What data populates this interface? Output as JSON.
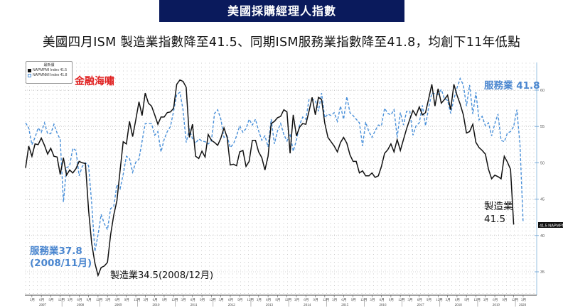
{
  "banner": {
    "title": "美國採購經理人指數",
    "bg_color": "#0a1a5c"
  },
  "subtitle": "美國四月ISM 製造業指數降至41.5、同期ISM服務業指數降至41.8，均創下11年低點",
  "brand_label": "金融海嘯",
  "legend": {
    "title": "最新價",
    "items": [
      {
        "swatch": "black-square",
        "label": "NAPMPMI Index 41.5"
      },
      {
        "swatch": "blue-outline-square",
        "label": "NAPMNMI Index 41.8"
      }
    ]
  },
  "annotations": {
    "services_latest": "服務業 41.8",
    "services_low_line1": "服務業37.8",
    "services_low_line2": "(2008/11月)",
    "mfg_low": "製造業34.5(2008/12月)",
    "mfg_latest_line1": "製造業",
    "mfg_latest_line2": "41.5",
    "last_value_tag": "41.5 NAPMPMI"
  },
  "chart_data": {
    "type": "line",
    "title": "美國採購經理人指數",
    "xlabel": "",
    "ylabel": "",
    "ylim": [
      33,
      62
    ],
    "yticks": [
      35,
      40,
      45,
      50,
      55,
      60
    ],
    "y_axis_position": "right",
    "grid": true,
    "legend_position": "top-left",
    "x_start": "2007-01",
    "x_end": "2020-04",
    "x_month_ticks": [
      "3月",
      "6月",
      "9月",
      "12月"
    ],
    "x_year_labels": [
      "2007",
      "2008",
      "2009",
      "2010",
      "2011",
      "2012",
      "2013",
      "2014",
      "2015",
      "2016",
      "2017",
      "2018",
      "2019",
      "2020"
    ],
    "series": [
      {
        "name": "NAPMPMI Index (製造業)",
        "color": "#111111",
        "style": "solid",
        "latest": 41.5,
        "values": [
          49.3,
          52.3,
          50.9,
          52.6,
          52.5,
          53.4,
          52.4,
          51.2,
          52.0,
          50.9,
          50.8,
          48.4,
          50.7,
          48.3,
          49.0,
          48.6,
          49.2,
          50.2,
          50.0,
          49.9,
          43.5,
          38.9,
          36.2,
          34.5,
          35.6,
          35.8,
          36.3,
          40.1,
          42.8,
          44.8,
          48.9,
          52.9,
          52.6,
          55.7,
          53.6,
          55.9,
          58.4,
          56.5,
          59.6,
          58.2,
          57.8,
          56.6,
          55.3,
          56.3,
          56.3,
          56.9,
          57.0,
          57.5,
          60.8,
          61.4,
          61.2,
          60.4,
          53.5,
          55.3,
          50.9,
          50.6,
          51.6,
          50.8,
          53.9,
          53.1,
          52.8,
          52.4,
          53.4,
          54.8,
          53.5,
          49.7,
          49.8,
          49.6,
          51.5,
          51.7,
          49.5,
          50.2,
          53.1,
          53.1,
          51.5,
          50.7,
          49.0,
          50.9,
          55.4,
          55.7,
          56.2,
          56.4,
          57.3,
          57.0,
          51.3,
          56.6,
          53.7,
          54.9,
          55.4,
          55.3,
          57.1,
          59.0,
          56.6,
          59.0,
          58.7,
          55.5,
          53.5,
          52.9,
          52.3,
          51.5,
          52.8,
          53.5,
          52.7,
          51.1,
          50.2,
          50.2,
          48.6,
          48.9,
          48.2,
          48.2,
          48.6,
          48.0,
          48.2,
          49.5,
          51.3,
          51.8,
          52.6,
          51.5,
          53.2,
          51.7,
          53.2,
          54.7,
          56.0,
          57.2,
          56.5,
          57.7,
          56.6,
          56.9,
          58.8,
          60.8,
          57.8,
          60.2,
          58.2,
          58.7,
          59.3,
          57.3,
          60.8,
          59.3,
          58.1,
          56.6,
          54.1,
          54.3,
          55.3,
          52.8,
          52.1,
          51.7,
          51.2,
          49.1,
          47.8,
          48.3,
          48.1,
          47.8,
          50.9,
          50.1,
          49.1,
          41.5
        ]
      },
      {
        "name": "NAPMNMI Index (服務業)",
        "color": "#4a90d9",
        "style": "dashed",
        "latest": 41.8,
        "values": [
          55.5,
          54.8,
          52.5,
          53.5,
          54.8,
          54.2,
          55.5,
          54.0,
          54.0,
          55.3,
          54.1,
          53.2,
          44.6,
          49.3,
          49.6,
          52.0,
          51.7,
          48.2,
          49.5,
          50.0,
          49.6,
          44.4,
          37.8,
          40.1,
          42.9,
          41.6,
          40.8,
          43.7,
          44.0,
          47.0,
          46.4,
          48.4,
          50.9,
          50.6,
          48.7,
          50.1,
          50.5,
          53.0,
          55.4,
          55.4,
          55.4,
          53.8,
          54.3,
          51.5,
          53.2,
          54.3,
          55.0,
          57.1,
          59.4,
          59.7,
          57.3,
          52.8,
          54.6,
          53.3,
          52.7,
          53.3,
          53.0,
          52.9,
          52.6,
          53.0,
          56.8,
          57.3,
          56.0,
          53.5,
          53.7,
          52.1,
          52.6,
          53.7,
          55.1,
          54.2,
          54.7,
          56.0,
          55.2,
          56.0,
          54.4,
          53.1,
          53.7,
          52.2,
          56.0,
          52.6,
          54.4,
          55.4,
          53.9,
          53.0,
          54.0,
          51.6,
          53.1,
          55.2,
          56.3,
          56.0,
          58.7,
          58.7,
          58.6,
          57.1,
          59.6,
          56.2,
          56.7,
          56.5,
          56.9,
          55.7,
          57.8,
          56.0,
          59.1,
          56.9,
          56.5,
          56.0,
          55.5,
          52.3,
          55.6,
          54.3,
          53.5,
          54.4,
          55.2,
          55.1,
          57.5,
          56.8,
          56.6,
          57.3,
          53.5,
          56.9,
          55.2,
          57.1,
          57.1,
          53.8,
          55.1,
          55.5,
          57.9,
          55.1,
          57.6,
          59.6,
          59.5,
          59.4,
          60.1,
          58.8,
          58.6,
          56.8,
          58.8,
          60.3,
          61.6,
          60.7,
          57.8,
          60.7,
          56.7,
          59.7,
          55.9,
          56.4,
          55.1,
          55.5,
          53.7,
          55.4,
          56.7,
          53.1,
          52.9,
          54.1,
          54.3,
          55.0,
          57.3,
          52.5,
          41.8
        ]
      }
    ]
  }
}
